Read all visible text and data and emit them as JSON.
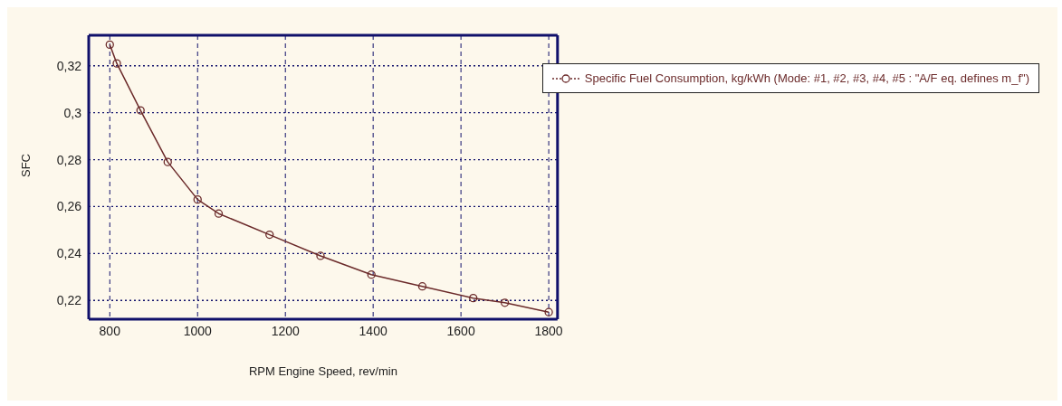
{
  "chart_data": {
    "type": "line",
    "xlabel": "RPM     Engine Speed, rev/min",
    "ylabel": "SFC",
    "x": [
      800,
      816,
      870,
      932,
      1000,
      1048,
      1164,
      1280,
      1396,
      1512,
      1628,
      1700,
      1800
    ],
    "series": [
      {
        "name": "Specific Fuel Consumption, kg/kWh (Mode: #1, #2, #3, #4, #5 : \"A/F eq. defines m_f\")",
        "color": "#6b2a2a",
        "values": [
          0.329,
          0.321,
          0.301,
          0.279,
          0.263,
          0.257,
          0.248,
          0.239,
          0.231,
          0.226,
          0.221,
          0.219,
          0.215
        ]
      }
    ],
    "xlim": [
      752,
      1820
    ],
    "xticks": [
      800,
      1000,
      1200,
      1400,
      1600,
      1800
    ],
    "ylim": [
      0.212,
      0.333
    ],
    "yticks": [
      {
        "value": 0.22,
        "label": "0,22"
      },
      {
        "value": 0.24,
        "label": "0,24"
      },
      {
        "value": 0.26,
        "label": "0,26"
      },
      {
        "value": 0.28,
        "label": "0,28"
      },
      {
        "value": 0.3,
        "label": "0,3"
      },
      {
        "value": 0.32,
        "label": "0,32"
      }
    ],
    "grid": true,
    "legend": "top right",
    "marker": "circle",
    "line_style": "solid"
  }
}
